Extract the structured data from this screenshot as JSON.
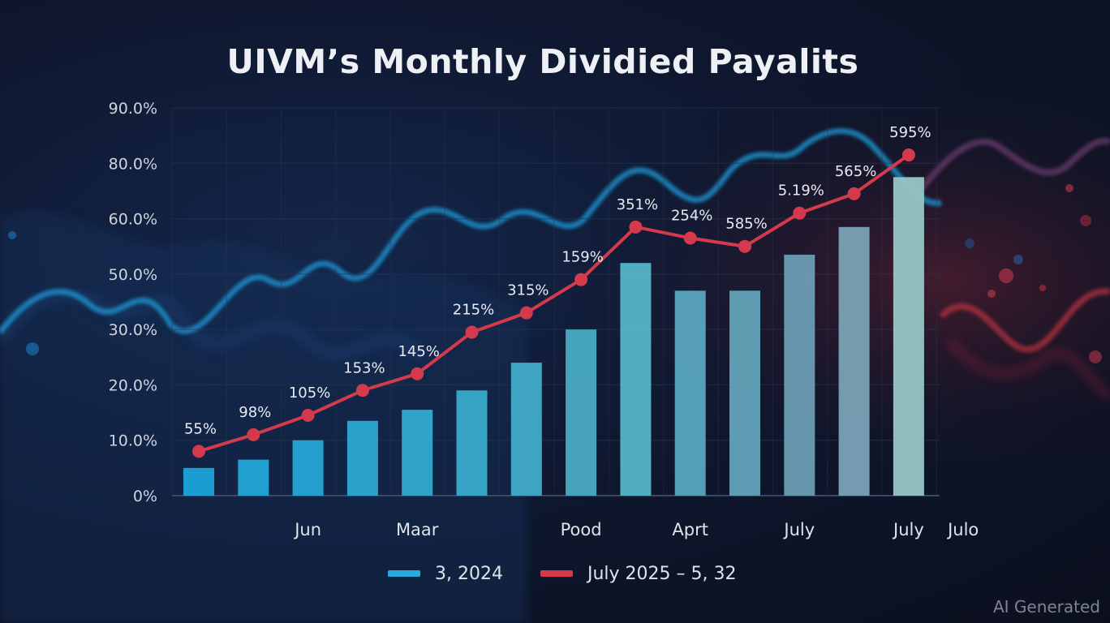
{
  "chart_data": {
    "type": "bar",
    "title": "UIVM’s Monthly Dividied Payalits",
    "y_tick_labels": [
      "0%",
      "10.0%",
      "20.0%",
      "30.0%",
      "50.0%",
      "60.0%",
      "80.0%",
      "90.0%"
    ],
    "ylim": [
      0,
      7
    ],
    "x_tick_labels": [
      "Jun",
      "Maar",
      "Pood",
      "Aprt",
      "July",
      "July",
      "Julo"
    ],
    "x_tick_positions": [
      2,
      4,
      7,
      9,
      11,
      13,
      14
    ],
    "series": [
      {
        "name": "3, 2024",
        "type": "bar",
        "color": "#2aa9dc",
        "values": [
          0.5,
          0.65,
          1.0,
          1.35,
          1.55,
          1.9,
          2.4,
          3.0,
          4.2,
          3.7,
          3.7,
          4.35,
          4.85,
          5.75
        ]
      },
      {
        "name": "July  2025 – 5, 32",
        "type": "line",
        "color": "#d43a4c",
        "values": [
          0.8,
          1.1,
          1.45,
          1.9,
          2.2,
          2.95,
          3.3,
          3.9,
          4.85,
          4.65,
          4.5,
          5.1,
          5.45,
          6.15
        ],
        "data_labels": [
          "55%",
          "98%",
          "105%",
          "153%",
          "145%",
          "215%",
          "315%",
          "159%",
          "351%",
          "254%",
          "585%",
          "5.19%",
          "565%",
          "595%"
        ]
      }
    ],
    "grid": true,
    "legend_position": "bottom-center"
  },
  "watermark": "AI Generated"
}
